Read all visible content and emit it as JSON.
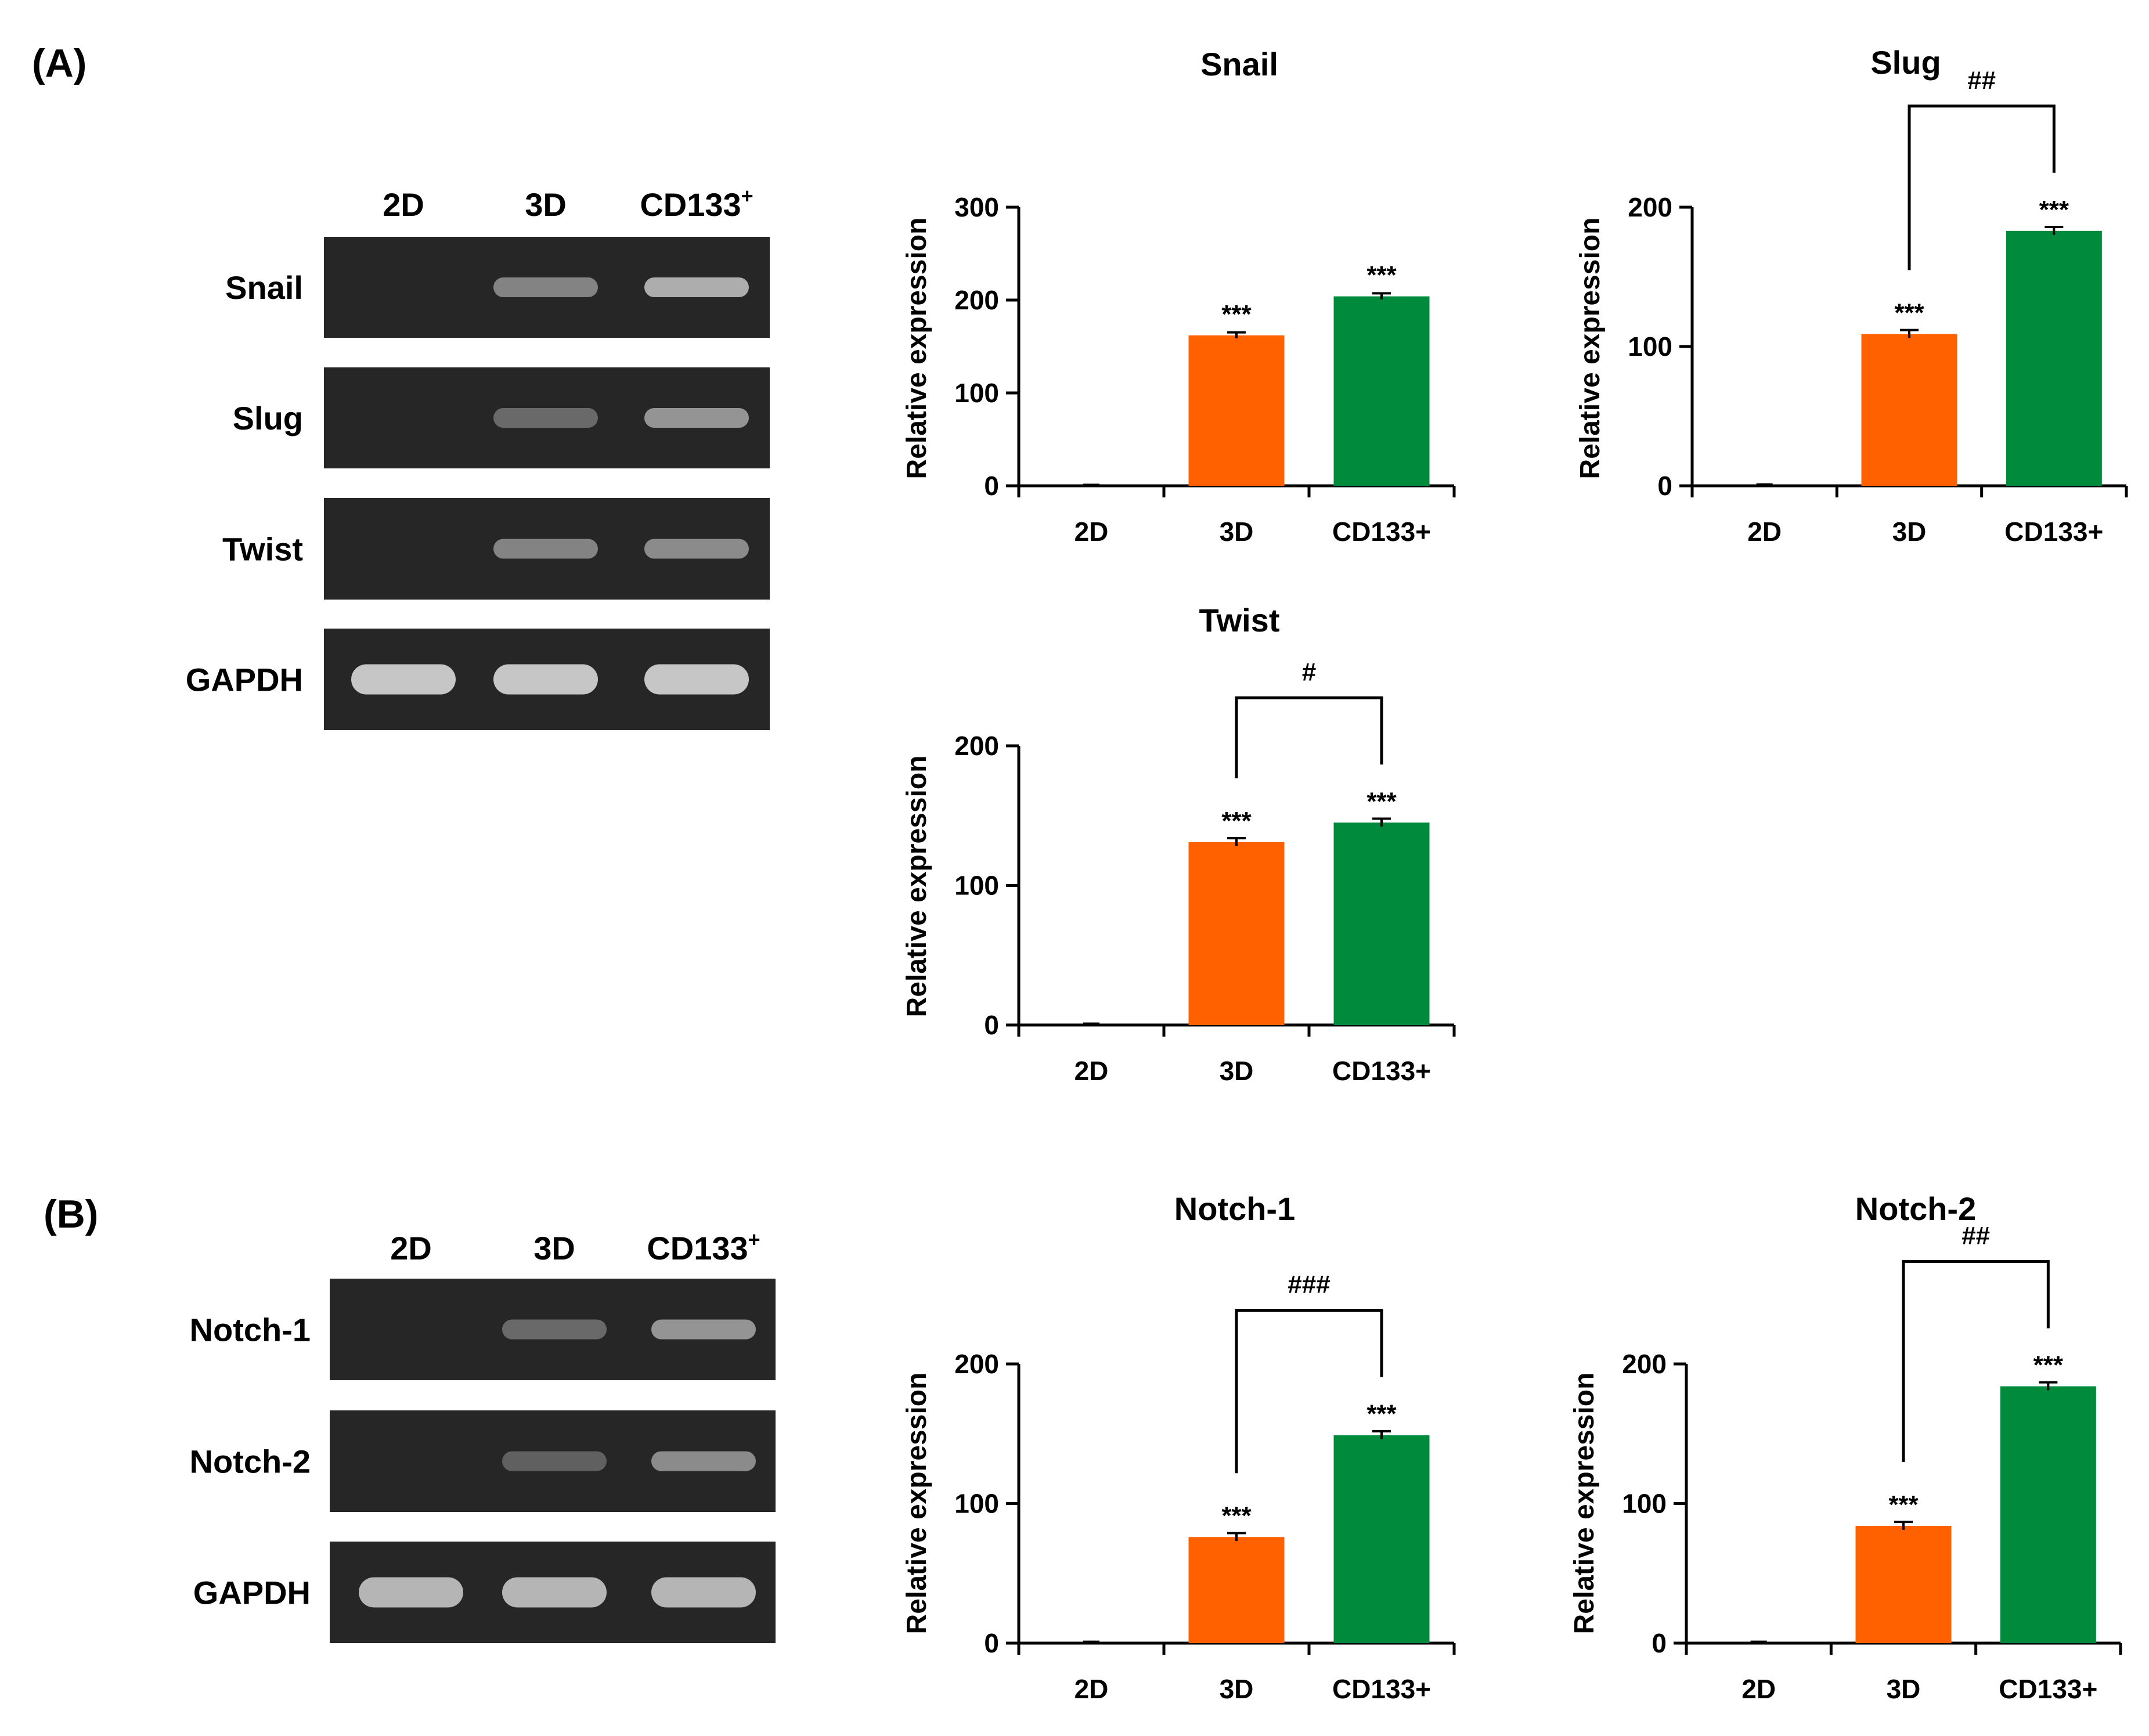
{
  "panels": {
    "a": "(A)",
    "b": "(B)"
  },
  "colors": {
    "bar_3d": "#ff6000",
    "bar_cd133": "#008a3c",
    "band": "#cfcfcf",
    "gel": "#262626"
  },
  "gel_a": {
    "lanes": [
      "2D",
      "3D",
      "CD133"
    ],
    "sup": "+",
    "rows": [
      {
        "name": "Snail",
        "bands": [
          0.0,
          0.55,
          0.8
        ]
      },
      {
        "name": "Slug",
        "bands": [
          0.0,
          0.4,
          0.65
        ]
      },
      {
        "name": "Twist",
        "bands": [
          0.0,
          0.55,
          0.6
        ]
      },
      {
        "name": "GAPDH",
        "bands": [
          0.95,
          0.95,
          0.95
        ]
      }
    ]
  },
  "gel_b": {
    "lanes": [
      "2D",
      "3D",
      "CD133"
    ],
    "sup": "+",
    "rows": [
      {
        "name": "Notch-1",
        "bands": [
          0.0,
          0.4,
          0.65
        ]
      },
      {
        "name": "Notch-2",
        "bands": [
          0.0,
          0.35,
          0.6
        ]
      },
      {
        "name": "GAPDH",
        "bands": [
          0.85,
          0.85,
          0.85
        ]
      }
    ]
  },
  "chart_data": [
    {
      "type": "bar",
      "title": "Snail",
      "ylabel": "Relative expression",
      "categories": [
        "2D",
        "3D",
        "CD133+"
      ],
      "values": [
        1,
        162,
        204
      ],
      "errors": [
        0,
        2,
        2
      ],
      "ylim": [
        0,
        300
      ],
      "yticks": [
        0,
        100,
        200,
        300
      ],
      "stars": [
        "",
        "***",
        "***"
      ],
      "bracket": null
    },
    {
      "type": "bar",
      "title": "Slug",
      "ylabel": "Relative expression",
      "categories": [
        "2D",
        "3D",
        "CD133+"
      ],
      "values": [
        1,
        109,
        183
      ],
      "errors": [
        0,
        2,
        2
      ],
      "ylim": [
        0,
        200
      ],
      "yticks": [
        0,
        100,
        200
      ],
      "stars": [
        "",
        "***",
        "***"
      ],
      "bracket": {
        "from": 1,
        "to": 2,
        "label": "##"
      }
    },
    {
      "type": "bar",
      "title": "Twist",
      "ylabel": "Relative expression",
      "categories": [
        "2D",
        "3D",
        "CD133+"
      ],
      "values": [
        1,
        131,
        145
      ],
      "errors": [
        0,
        2,
        2
      ],
      "ylim": [
        0,
        200
      ],
      "yticks": [
        0,
        100,
        200
      ],
      "stars": [
        "",
        "***",
        "***"
      ],
      "bracket": {
        "from": 1,
        "to": 2,
        "label": "#"
      }
    },
    {
      "type": "bar",
      "title": "Notch-1",
      "ylabel": "Relative expression",
      "categories": [
        "2D",
        "3D",
        "CD133+"
      ],
      "values": [
        1,
        76,
        149
      ],
      "errors": [
        0,
        2,
        2
      ],
      "ylim": [
        0,
        200
      ],
      "yticks": [
        0,
        100,
        200
      ],
      "stars": [
        "",
        "***",
        "***"
      ],
      "bracket": {
        "from": 1,
        "to": 2,
        "label": "###"
      }
    },
    {
      "type": "bar",
      "title": "Notch-2",
      "ylabel": "Relative expression",
      "categories": [
        "2D",
        "3D",
        "CD133+"
      ],
      "values": [
        1,
        84,
        184
      ],
      "errors": [
        0,
        2,
        2
      ],
      "ylim": [
        0,
        200
      ],
      "yticks": [
        0,
        100,
        200
      ],
      "stars": [
        "",
        "***",
        "***"
      ],
      "bracket": {
        "from": 1,
        "to": 2,
        "label": "##"
      }
    }
  ]
}
